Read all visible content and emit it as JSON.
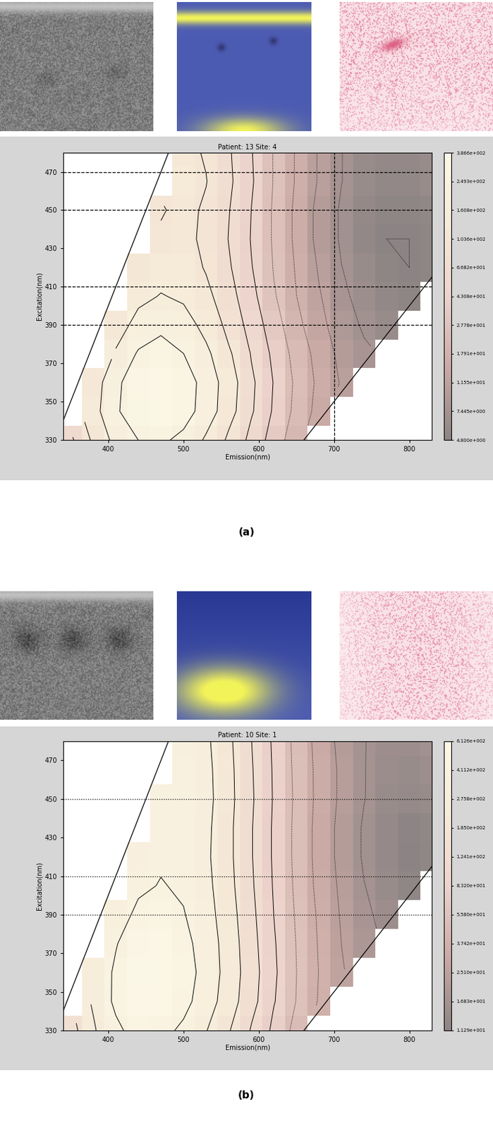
{
  "chart_data": [
    {
      "type": "contour",
      "panel_label": "(a)",
      "title": "Patient: 13 Site: 4",
      "x_label": "Emission(nm)",
      "y_label": "Excitation(nm)",
      "x": [
        350,
        380,
        410,
        440,
        470,
        500,
        530,
        560,
        590,
        620,
        650,
        680,
        710,
        740,
        770,
        800,
        830
      ],
      "y": [
        330,
        345,
        360,
        375,
        390,
        405,
        420,
        435,
        450,
        465,
        480
      ],
      "values": [
        [
          60,
          110,
          180,
          250,
          270,
          220,
          150,
          95,
          58,
          34,
          21,
          null,
          null,
          null,
          null,
          null,
          null
        ],
        [
          null,
          130,
          230,
          340,
          370,
          300,
          200,
          120,
          70,
          40,
          24,
          15,
          null,
          null,
          null,
          null,
          null
        ],
        [
          null,
          120,
          220,
          330,
          380,
          310,
          205,
          125,
          72,
          42,
          25,
          16,
          11,
          null,
          null,
          null,
          null
        ],
        [
          null,
          null,
          170,
          260,
          300,
          250,
          175,
          110,
          65,
          38,
          23,
          15,
          10,
          8,
          null,
          null,
          null
        ],
        [
          null,
          null,
          120,
          190,
          220,
          190,
          140,
          90,
          55,
          33,
          20,
          13,
          9,
          7,
          6,
          null,
          null
        ],
        [
          null,
          null,
          null,
          140,
          165,
          150,
          115,
          78,
          48,
          29,
          18,
          12,
          8,
          6.5,
          5.5,
          5,
          null
        ],
        [
          null,
          null,
          null,
          110,
          130,
          125,
          100,
          70,
          44,
          27,
          17,
          11,
          7.5,
          6,
          5,
          4.8,
          5
        ],
        [
          null,
          null,
          null,
          null,
          110,
          115,
          95,
          66,
          42,
          26,
          16,
          10,
          7,
          5.5,
          4.8,
          4.8,
          5
        ],
        [
          null,
          null,
          null,
          null,
          100,
          115,
          98,
          68,
          43,
          26,
          16,
          10,
          7,
          5.6,
          5,
          5,
          5.3
        ],
        [
          null,
          null,
          null,
          null,
          null,
          125,
          105,
          72,
          45,
          27,
          17,
          11,
          7.5,
          6,
          5.5,
          5.5,
          6
        ],
        [
          null,
          null,
          null,
          null,
          null,
          115,
          100,
          70,
          44,
          27,
          17,
          11,
          7.5,
          6,
          5.6,
          5.6,
          6
        ]
      ],
      "xlim": [
        340,
        830
      ],
      "ylim": [
        330,
        480
      ],
      "xticks": [
        400,
        500,
        600,
        700,
        800
      ],
      "yticks": [
        330,
        350,
        370,
        390,
        410,
        430,
        450,
        470
      ],
      "line_style": "dashed",
      "reference_lines": {
        "excitation": [
          390,
          410,
          450,
          470
        ],
        "emission": [
          700
        ]
      },
      "colorbar": {
        "log": true,
        "range": [
          4.8,
          386.6
        ],
        "ticks": [
          {
            "value": 4.8,
            "label": "4.800e+000"
          },
          {
            "value": 7.445,
            "label": "7.445e+000"
          },
          {
            "value": 11.55,
            "label": "1.155e+001"
          },
          {
            "value": 17.91,
            "label": "1.791e+001"
          },
          {
            "value": 27.78,
            "label": "2.778e+001"
          },
          {
            "value": 43.08,
            "label": "4.308e+001"
          },
          {
            "value": 66.82,
            "label": "6.682e+001"
          },
          {
            "value": 103.6,
            "label": "1.036e+002"
          },
          {
            "value": 160.8,
            "label": "1.608e+002"
          },
          {
            "value": 249.3,
            "label": "2.493e+002"
          },
          {
            "value": 386.6,
            "label": "3.866e+002"
          }
        ]
      }
    },
    {
      "type": "contour",
      "panel_label": "(b)",
      "title": "Patient: 10 Site: 1",
      "x_label": "Emission(nm)",
      "y_label": "Excitation(nm)",
      "x": [
        350,
        380,
        410,
        440,
        470,
        500,
        530,
        560,
        590,
        620,
        650,
        680,
        710,
        740,
        770,
        800,
        830
      ],
      "y": [
        330,
        345,
        360,
        375,
        390,
        405,
        420,
        435,
        450,
        465,
        480
      ],
      "values": [
        [
          150,
          260,
          380,
          470,
          460,
          380,
          280,
          190,
          120,
          75,
          48,
          null,
          null,
          null,
          null,
          null,
          null
        ],
        [
          null,
          290,
          440,
          560,
          560,
          460,
          330,
          220,
          140,
          85,
          55,
          36,
          null,
          null,
          null,
          null,
          null
        ],
        [
          null,
          280,
          440,
          590,
          600,
          490,
          350,
          230,
          145,
          88,
          56,
          37,
          26,
          null,
          null,
          null,
          null
        ],
        [
          null,
          null,
          400,
          530,
          550,
          460,
          340,
          225,
          140,
          86,
          55,
          36,
          25,
          19,
          null,
          null,
          null
        ],
        [
          null,
          null,
          330,
          450,
          480,
          420,
          320,
          215,
          135,
          83,
          53,
          35,
          24,
          18,
          15,
          null,
          null
        ],
        [
          null,
          null,
          null,
          380,
          420,
          390,
          305,
          205,
          130,
          80,
          51,
          33,
          23,
          17,
          14,
          12,
          null
        ],
        [
          null,
          null,
          null,
          340,
          390,
          375,
          295,
          200,
          127,
          78,
          50,
          32,
          22,
          16,
          13,
          11.3,
          12
        ],
        [
          null,
          null,
          null,
          null,
          380,
          380,
          300,
          200,
          127,
          78,
          50,
          32,
          22,
          16,
          13,
          11.5,
          12.5
        ],
        [
          null,
          null,
          null,
          null,
          390,
          400,
          310,
          205,
          130,
          80,
          51,
          33,
          23,
          17,
          14,
          13,
          14
        ],
        [
          null,
          null,
          null,
          null,
          null,
          390,
          305,
          203,
          128,
          79,
          50,
          33,
          23,
          17,
          14.5,
          14,
          15
        ],
        [
          null,
          null,
          null,
          null,
          null,
          370,
          295,
          198,
          125,
          77,
          49,
          32,
          22,
          17,
          15,
          15,
          16
        ]
      ],
      "xlim": [
        340,
        830
      ],
      "ylim": [
        330,
        480
      ],
      "xticks": [
        400,
        500,
        600,
        700,
        800
      ],
      "yticks": [
        330,
        350,
        370,
        390,
        410,
        430,
        450,
        470
      ],
      "line_style": "dotted",
      "reference_lines": {
        "excitation": [
          390,
          410,
          450
        ],
        "emission": []
      },
      "colorbar": {
        "log": true,
        "range": [
          11.29,
          612.6
        ],
        "ticks": [
          {
            "value": 11.29,
            "label": "1.129e+001"
          },
          {
            "value": 16.83,
            "label": "1.683e+001"
          },
          {
            "value": 25.1,
            "label": "2.510e+001"
          },
          {
            "value": 37.42,
            "label": "3.742e+001"
          },
          {
            "value": 55.8,
            "label": "5.580e+001"
          },
          {
            "value": 83.2,
            "label": "8.320e+001"
          },
          {
            "value": 124.1,
            "label": "1.241e+002"
          },
          {
            "value": 185.0,
            "label": "1.850e+002"
          },
          {
            "value": 275.8,
            "label": "2.758e+002"
          },
          {
            "value": 411.2,
            "label": "4.112e+002"
          },
          {
            "value": 612.6,
            "label": "6.126e+002"
          }
        ]
      }
    }
  ]
}
